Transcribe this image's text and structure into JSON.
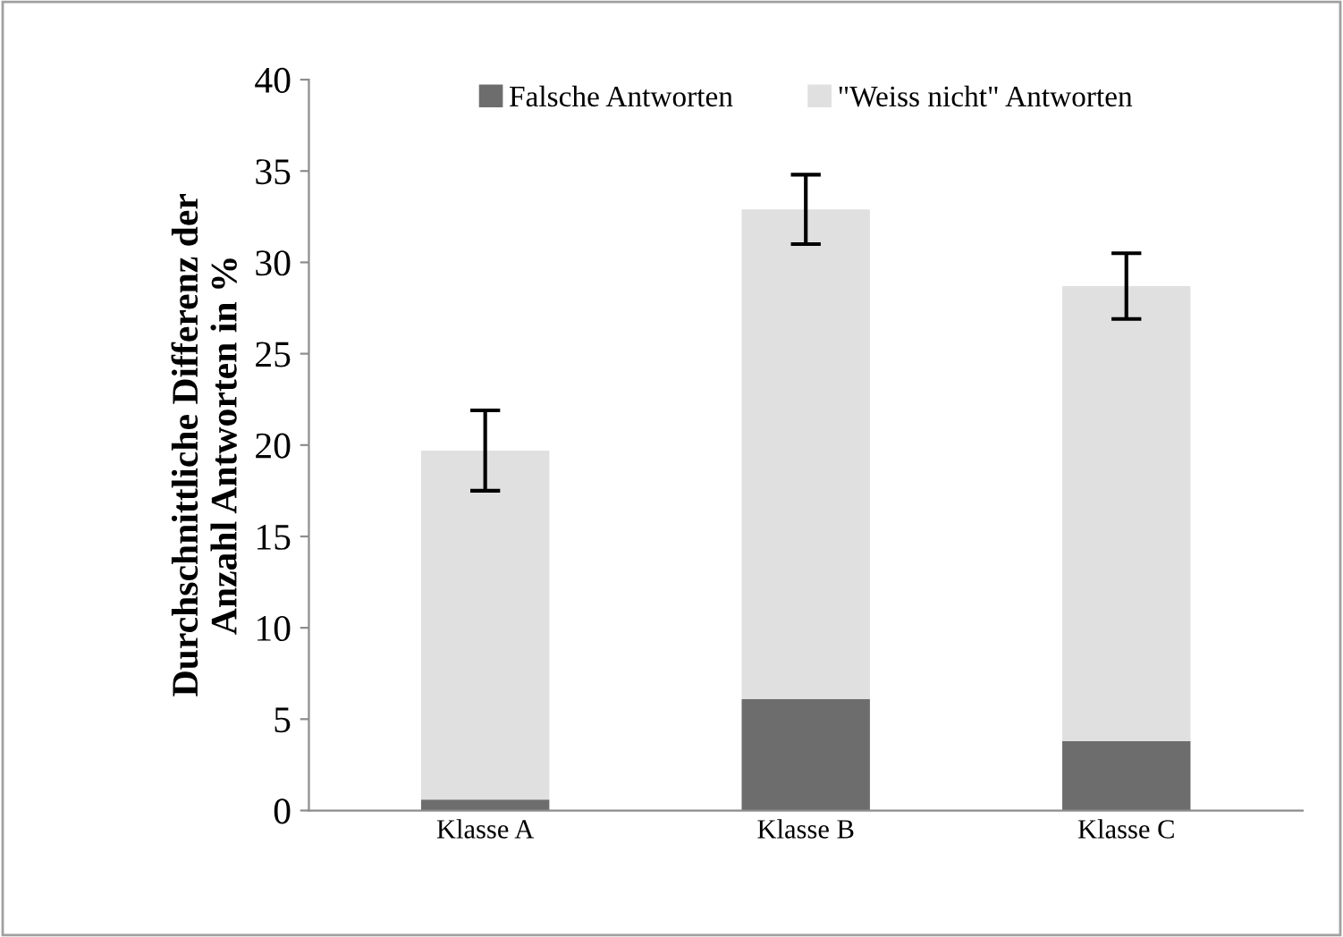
{
  "chart_data": {
    "type": "bar",
    "stacked": true,
    "ylabel": "Durchschnittliche Differenz der\nAnzahl Antworten in %",
    "categories": [
      "Klasse A",
      "Klasse B",
      "Klasse C"
    ],
    "series": [
      {
        "name": "Falsche Antworten",
        "color": "#6d6d6d",
        "values": [
          0.6,
          6.1,
          3.8
        ]
      },
      {
        "name": "\"Weiss nicht\" Antworten",
        "color": "#e0e0e0",
        "values": [
          19.1,
          26.8,
          24.9
        ],
        "errors": [
          2.2,
          1.9,
          1.8
        ]
      }
    ],
    "ylim": [
      0,
      40
    ],
    "yticks": [
      0,
      5,
      10,
      15,
      20,
      25,
      30,
      35,
      40
    ],
    "grid": false,
    "legend": "top"
  }
}
